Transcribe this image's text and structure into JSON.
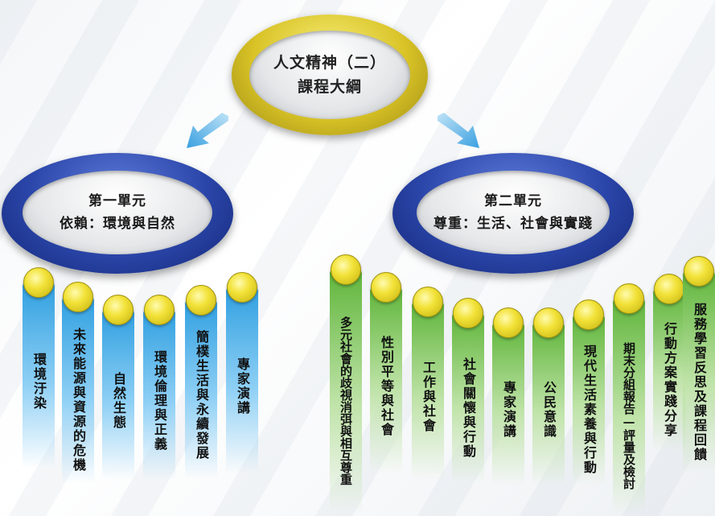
{
  "title": {
    "line1": "人文精神（二）",
    "line2": "課程大綱"
  },
  "units": [
    {
      "label": "第一單元",
      "subtitle": "依賴：環境與自然",
      "topics": [
        "環境汙染",
        "未來能源與資源的危機",
        "自然生態",
        "環境倫理與正義",
        "簡樸生活與永續發展",
        "專家演講"
      ]
    },
    {
      "label": "第二單元",
      "subtitle": "尊重：生活、社會與實踐",
      "topics": [
        "多元社會的歧視消弭與相互尊重",
        "性別平等與社會",
        "工作與社會",
        "社會關懷與行動",
        "專家演講",
        "公民意識",
        "現代生活素養與行動",
        "期末分組報告—評量及檢討",
        "行動方案實踐分享",
        "服務學習反思及課程回饋"
      ]
    }
  ],
  "colors": {
    "unit1_pillar": "#2f9fe0",
    "unit2_pillar": "#5fb53a",
    "title_ring": "#d9c327",
    "unit_ring": "#2a45a8"
  }
}
